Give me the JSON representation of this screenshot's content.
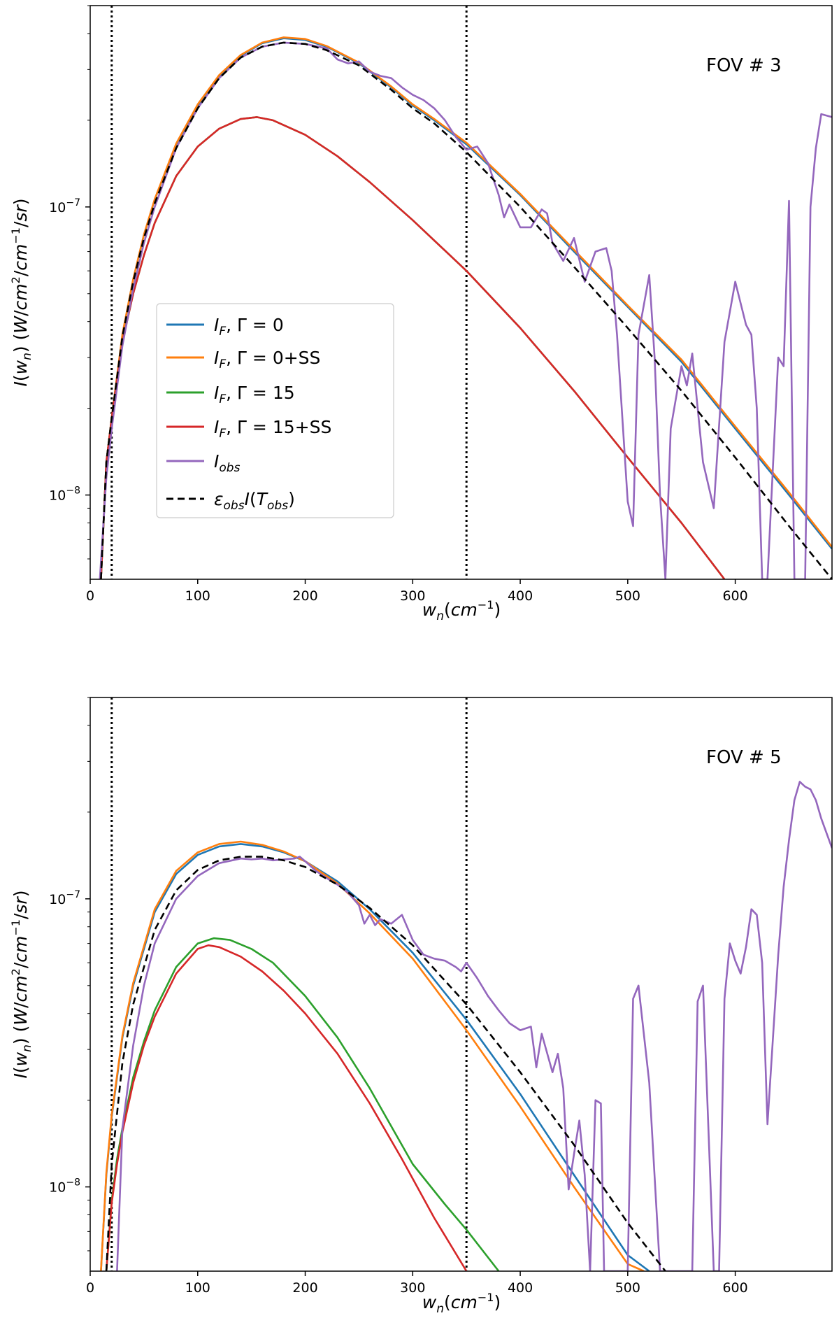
{
  "chart_data": [
    {
      "type": "line",
      "y_scale": "log",
      "annotation": "FOV # 3",
      "xlabel": "w_n(cm^-1)",
      "ylabel": "I(w_n) (W/cm^2/cm^-1/sr)",
      "xlim": [
        0,
        690
      ],
      "ylim": [
        5.1e-09,
        5e-07
      ],
      "x_ticks": [
        0,
        100,
        200,
        300,
        400,
        500,
        600
      ],
      "y_ticks": [
        {
          "value": 1e-08,
          "label": "10^-8"
        },
        {
          "value": 1e-07,
          "label": "10^-7"
        }
      ],
      "vlines": [
        20,
        350
      ],
      "legend": {
        "position": "center-left",
        "entries": [
          {
            "label": "I_F, Γ = 0",
            "color": "#1f77b4",
            "dash": "solid"
          },
          {
            "label": "I_F, Γ = 0+SS",
            "color": "#ff7f0e",
            "dash": "solid"
          },
          {
            "label": "I_F, Γ = 15",
            "color": "#2ca02c",
            "dash": "solid"
          },
          {
            "label": "I_F, Γ = 15+SS",
            "color": "#d62728",
            "dash": "solid"
          },
          {
            "label": "I_obs",
            "color": "#9467bd",
            "dash": "solid"
          },
          {
            "label": "ε_obs I(T_obs)",
            "color": "#000000",
            "dash": "dashed"
          }
        ]
      },
      "series": [
        {
          "name": "I_F, Γ = 0",
          "color": "#1f77b4",
          "dash": "solid",
          "x": [
            10,
            15,
            20,
            30,
            40,
            50,
            60,
            80,
            100,
            120,
            140,
            160,
            180,
            200,
            220,
            250,
            280,
            300,
            320,
            350,
            400,
            450,
            500,
            550,
            600,
            650,
            690
          ],
          "y": [
            5.1e-09,
            1.3e-08,
            1.85e-08,
            3.6e-08,
            5.6e-08,
            8e-08,
            1.06e-07,
            1.65e-07,
            2.25e-07,
            2.85e-07,
            3.35e-07,
            3.7e-07,
            3.85e-07,
            3.8e-07,
            3.6e-07,
            3.15e-07,
            2.6e-07,
            2.25e-07,
            2e-07,
            1.65e-07,
            1.1e-07,
            7e-08,
            4.5e-08,
            2.9e-08,
            1.7e-08,
            1e-08,
            6.5e-09
          ]
        },
        {
          "name": "I_F, Γ = 0+SS",
          "color": "#ff7f0e",
          "dash": "solid",
          "x": [
            10,
            15,
            20,
            30,
            40,
            50,
            60,
            80,
            100,
            120,
            140,
            160,
            180,
            200,
            220,
            250,
            280,
            300,
            320,
            350,
            400,
            450,
            500,
            550,
            600,
            650,
            690
          ],
          "y": [
            5.1e-09,
            1.3e-08,
            1.86e-08,
            3.62e-08,
            5.62e-08,
            8.02e-08,
            1.065e-07,
            1.66e-07,
            2.27e-07,
            2.87e-07,
            3.37e-07,
            3.72e-07,
            3.88e-07,
            3.83e-07,
            3.62e-07,
            3.17e-07,
            2.62e-07,
            2.27e-07,
            2.02e-07,
            1.67e-07,
            1.11e-07,
            7.1e-08,
            4.55e-08,
            2.95e-08,
            1.73e-08,
            1.02e-08,
            6.6e-09
          ]
        },
        {
          "name": "I_F, Γ = 15",
          "color": "#2ca02c",
          "dash": "solid",
          "x": [
            10,
            15,
            20,
            30,
            40,
            50,
            60,
            80,
            100,
            120,
            140,
            155,
            170,
            200,
            230,
            260,
            300,
            350,
            400,
            450,
            500,
            550,
            590
          ],
          "y": [
            5.1e-09,
            1.3e-08,
            1.85e-08,
            3.4e-08,
            5e-08,
            6.8e-08,
            8.8e-08,
            1.28e-07,
            1.62e-07,
            1.87e-07,
            2.02e-07,
            2.05e-07,
            2e-07,
            1.78e-07,
            1.5e-07,
            1.22e-07,
            9e-08,
            6e-08,
            3.8e-08,
            2.3e-08,
            1.35e-08,
            8e-09,
            5.1e-09
          ]
        },
        {
          "name": "I_F, Γ = 15+SS",
          "color": "#d62728",
          "dash": "solid",
          "x": [
            10,
            15,
            20,
            30,
            40,
            50,
            60,
            80,
            100,
            120,
            140,
            155,
            170,
            200,
            230,
            260,
            300,
            350,
            400,
            450,
            500,
            550,
            590
          ],
          "y": [
            5.1e-09,
            1.3e-08,
            1.85e-08,
            3.4e-08,
            5e-08,
            6.8e-08,
            8.8e-08,
            1.28e-07,
            1.62e-07,
            1.87e-07,
            2.02e-07,
            2.05e-07,
            2e-07,
            1.78e-07,
            1.5e-07,
            1.22e-07,
            9e-08,
            6e-08,
            3.8e-08,
            2.3e-08,
            1.35e-08,
            8e-09,
            5.1e-09
          ]
        },
        {
          "name": "I_obs",
          "color": "#9467bd",
          "dash": "solid",
          "x": [
            9,
            15,
            20,
            30,
            40,
            50,
            60,
            80,
            100,
            120,
            140,
            160,
            180,
            200,
            220,
            230,
            240,
            250,
            260,
            270,
            280,
            290,
            300,
            310,
            320,
            330,
            340,
            350,
            360,
            370,
            380,
            385,
            390,
            400,
            410,
            420,
            425,
            430,
            440,
            450,
            460,
            470,
            480,
            485,
            490,
            500,
            505,
            510,
            520,
            525,
            530,
            535,
            540,
            550,
            555,
            560,
            570,
            580,
            590,
            600,
            610,
            615,
            620,
            625,
            630,
            640,
            645,
            650,
            655,
            660,
            665,
            670,
            675,
            680,
            690
          ],
          "y": [
            5.1e-09,
            1.15e-08,
            1.7e-08,
            3.3e-08,
            5.2e-08,
            7.5e-08,
            1e-07,
            1.6e-07,
            2.2e-07,
            2.8e-07,
            3.3e-07,
            3.6e-07,
            3.72e-07,
            3.68e-07,
            3.55e-07,
            3.25e-07,
            3.15e-07,
            3.2e-07,
            2.95e-07,
            2.85e-07,
            2.8e-07,
            2.6e-07,
            2.45e-07,
            2.35e-07,
            2.2e-07,
            2e-07,
            1.75e-07,
            1.58e-07,
            1.62e-07,
            1.42e-07,
            1.1e-07,
            9.2e-08,
            1.02e-07,
            8.5e-08,
            8.5e-08,
            9.8e-08,
            9.5e-08,
            7.5e-08,
            6.5e-08,
            7.8e-08,
            5.5e-08,
            7e-08,
            7.2e-08,
            6e-08,
            3.6e-08,
            9.5e-09,
            7.8e-09,
            3.6e-08,
            5.8e-08,
            3e-08,
            1e-08,
            5.1e-09,
            1.7e-08,
            2.8e-08,
            2.4e-08,
            3.1e-08,
            1.3e-08,
            9e-09,
            3.4e-08,
            5.5e-08,
            3.9e-08,
            3.6e-08,
            2e-08,
            5.1e-09,
            5.1e-09,
            3e-08,
            2.8e-08,
            1.05e-07,
            5.1e-09,
            5.1e-09,
            5.1e-09,
            1e-07,
            1.6e-07,
            2.1e-07,
            2.05e-07
          ]
        },
        {
          "name": "ε_obs I(T_obs)",
          "color": "#000000",
          "dash": "dashed",
          "x": [
            10,
            15,
            20,
            30,
            40,
            50,
            60,
            80,
            100,
            120,
            140,
            160,
            180,
            200,
            220,
            250,
            280,
            300,
            320,
            350,
            400,
            450,
            500,
            550,
            600,
            650,
            690
          ],
          "y": [
            5.1e-09,
            1.3e-08,
            1.85e-08,
            3.55e-08,
            5.5e-08,
            7.8e-08,
            1.03e-07,
            1.6e-07,
            2.2e-07,
            2.8e-07,
            3.3e-07,
            3.6e-07,
            3.72e-07,
            3.68e-07,
            3.5e-07,
            3.1e-07,
            2.55e-07,
            2.2e-07,
            1.95e-07,
            1.55e-07,
            1e-07,
            6.2e-08,
            3.8e-08,
            2.3e-08,
            1.35e-08,
            7.8e-09,
            5.1e-09
          ]
        }
      ]
    },
    {
      "type": "line",
      "y_scale": "log",
      "annotation": "FOV # 5",
      "xlabel": "w_n(cm^-1)",
      "ylabel": "I(w_n) (W/cm^2/cm^-1/sr)",
      "xlim": [
        0,
        690
      ],
      "ylim": [
        5.1e-09,
        5e-07
      ],
      "x_ticks": [
        0,
        100,
        200,
        300,
        400,
        500,
        600
      ],
      "y_ticks": [
        {
          "value": 1e-08,
          "label": "10^-8"
        },
        {
          "value": 1e-07,
          "label": "10^-7"
        }
      ],
      "vlines": [
        20,
        350
      ],
      "series": [
        {
          "name": "I_F, Γ = 0",
          "color": "#1f77b4",
          "dash": "solid",
          "x": [
            10,
            15,
            20,
            30,
            40,
            60,
            80,
            100,
            120,
            140,
            160,
            180,
            200,
            230,
            260,
            300,
            350,
            400,
            450,
            500,
            520
          ],
          "y": [
            5.1e-09,
            1.1e-08,
            1.75e-08,
            3.3e-08,
            5e-08,
            9e-08,
            1.22e-07,
            1.42e-07,
            1.52e-07,
            1.55e-07,
            1.52e-07,
            1.45e-07,
            1.35e-07,
            1.15e-07,
            9.2e-08,
            6.5e-08,
            3.8e-08,
            2.1e-08,
            1.1e-08,
            5.8e-09,
            5.1e-09
          ]
        },
        {
          "name": "I_F, Γ = 0+SS",
          "color": "#ff7f0e",
          "dash": "solid",
          "x": [
            10,
            15,
            20,
            30,
            40,
            60,
            80,
            100,
            120,
            140,
            160,
            180,
            200,
            230,
            260,
            300,
            350,
            400,
            450,
            500,
            515
          ],
          "y": [
            5.1e-09,
            1.12e-08,
            1.78e-08,
            3.35e-08,
            5.1e-08,
            9.2e-08,
            1.25e-07,
            1.45e-07,
            1.55e-07,
            1.58e-07,
            1.54e-07,
            1.46e-07,
            1.35e-07,
            1.13e-07,
            8.9e-08,
            6.2e-08,
            3.5e-08,
            1.9e-08,
            1e-08,
            5.4e-09,
            5.1e-09
          ]
        },
        {
          "name": "I_F, Γ = 15",
          "color": "#2ca02c",
          "dash": "solid",
          "x": [
            15,
            20,
            25,
            30,
            40,
            50,
            60,
            80,
            100,
            115,
            130,
            150,
            170,
            200,
            230,
            260,
            300,
            330,
            350,
            380
          ],
          "y": [
            5.1e-09,
            9e-09,
            1.25e-08,
            1.6e-08,
            2.4e-08,
            3.2e-08,
            4.1e-08,
            5.8e-08,
            7e-08,
            7.3e-08,
            7.2e-08,
            6.7e-08,
            6e-08,
            4.6e-08,
            3.3e-08,
            2.2e-08,
            1.2e-08,
            8.7e-09,
            7.1e-09,
            5.1e-09
          ]
        },
        {
          "name": "I_F, Γ = 15+SS",
          "color": "#d62728",
          "dash": "solid",
          "x": [
            15,
            20,
            25,
            30,
            40,
            50,
            60,
            80,
            100,
            110,
            120,
            140,
            160,
            180,
            200,
            230,
            260,
            290,
            320,
            350
          ],
          "y": [
            5.1e-09,
            8.8e-09,
            1.2e-08,
            1.55e-08,
            2.3e-08,
            3.1e-08,
            3.9e-08,
            5.5e-08,
            6.7e-08,
            6.9e-08,
            6.8e-08,
            6.3e-08,
            5.6e-08,
            4.8e-08,
            4e-08,
            2.9e-08,
            1.95e-08,
            1.25e-08,
            7.8e-09,
            5.1e-09
          ]
        },
        {
          "name": "I_obs",
          "color": "#9467bd",
          "dash": "solid",
          "x": [
            25,
            30,
            40,
            50,
            60,
            80,
            100,
            120,
            140,
            150,
            160,
            170,
            180,
            190,
            195,
            200,
            210,
            220,
            230,
            240,
            250,
            255,
            260,
            265,
            270,
            280,
            290,
            300,
            310,
            320,
            330,
            340,
            345,
            350,
            360,
            370,
            380,
            390,
            400,
            410,
            415,
            420,
            430,
            435,
            440,
            445,
            450,
            455,
            460,
            465,
            470,
            475,
            478,
            482,
            500,
            505,
            510,
            520,
            530,
            540,
            560,
            565,
            570,
            580,
            585,
            590,
            595,
            600,
            605,
            610,
            615,
            620,
            625,
            630,
            640,
            645,
            650,
            655,
            660,
            665,
            670,
            675,
            680,
            690
          ],
          "y": [
            5.1e-09,
            1.6e-08,
            3.1e-08,
            5e-08,
            7e-08,
            1e-07,
            1.2e-07,
            1.33e-07,
            1.38e-07,
            1.37e-07,
            1.38e-07,
            1.36e-07,
            1.37e-07,
            1.38e-07,
            1.4e-07,
            1.35e-07,
            1.25e-07,
            1.18e-07,
            1.12e-07,
            1.05e-07,
            9.5e-08,
            8.2e-08,
            8.8e-08,
            8.1e-08,
            8.5e-08,
            8.2e-08,
            8.8e-08,
            7.2e-08,
            6.4e-08,
            6.2e-08,
            6.1e-08,
            5.8e-08,
            5.6e-08,
            6e-08,
            5.3e-08,
            4.6e-08,
            4.1e-08,
            3.7e-08,
            3.5e-08,
            3.6e-08,
            2.6e-08,
            3.4e-08,
            2.5e-08,
            2.9e-08,
            2.2e-08,
            9.8e-09,
            1.3e-08,
            1.7e-08,
            1.1e-08,
            5.1e-09,
            2e-08,
            1.95e-08,
            5.1e-09,
            5.1e-09,
            5.1e-09,
            4.5e-08,
            5e-08,
            2.3e-08,
            5.1e-09,
            5.1e-09,
            5.1e-09,
            4.4e-08,
            5e-08,
            5.1e-09,
            5.1e-09,
            4.5e-08,
            7e-08,
            6.1e-08,
            5.5e-08,
            6.8e-08,
            9.2e-08,
            8.8e-08,
            6e-08,
            1.65e-08,
            6.4e-08,
            1.1e-07,
            1.6e-07,
            2.2e-07,
            2.55e-07,
            2.45e-07,
            2.4e-07,
            2.2e-07,
            1.9e-07,
            1.5e-07
          ]
        },
        {
          "name": "ε_obs I(T_obs)",
          "color": "#000000",
          "dash": "dashed",
          "x": [
            15,
            20,
            30,
            40,
            60,
            80,
            100,
            120,
            140,
            160,
            180,
            200,
            230,
            260,
            300,
            350,
            400,
            450,
            500,
            535
          ],
          "y": [
            5.1e-09,
            1.2e-08,
            2.7e-08,
            4.3e-08,
            7.8e-08,
            1.07e-07,
            1.26e-07,
            1.36e-07,
            1.4e-07,
            1.4e-07,
            1.36e-07,
            1.29e-07,
            1.12e-07,
            9.3e-08,
            6.9e-08,
            4.3e-08,
            2.5e-08,
            1.4e-08,
            7.5e-09,
            5.1e-09
          ]
        }
      ]
    }
  ]
}
